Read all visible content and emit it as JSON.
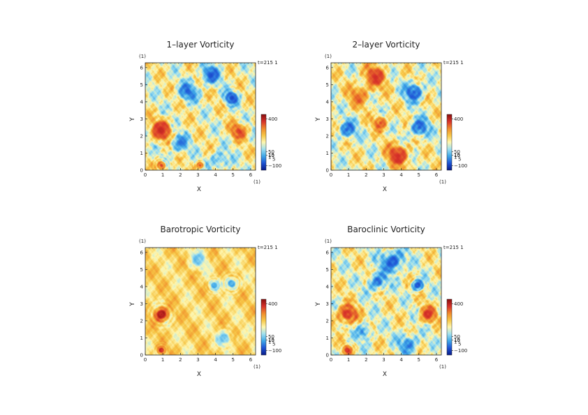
{
  "chart_data": [
    {
      "type": "heatmap",
      "title": "1–layer Vorticity",
      "xlabel": "X",
      "ylabel": "Y",
      "x_unit": "(1)",
      "y_unit": "(1)",
      "time_label": "t=215 1",
      "xlim": [
        0,
        6.28
      ],
      "ylim": [
        0,
        6.28
      ],
      "xticks": [
        "0",
        "1",
        "2",
        "3",
        "4",
        "5",
        "6"
      ],
      "yticks": [
        "0",
        "1",
        "2",
        "3",
        "4",
        "5",
        "6"
      ],
      "colorbar": {
        "range": [
          -150,
          450
        ],
        "ticks": [
          "400",
          "50",
          "10",
          "−100"
        ],
        "extra_labels": [
          "15",
          "1",
          "5"
        ]
      },
      "features": [
        {
          "x": 0.9,
          "y": 2.35,
          "strength": 1.0,
          "radius": 0.55
        },
        {
          "x": 0.9,
          "y": 0.3,
          "strength": 0.9,
          "radius": 0.25
        },
        {
          "x": 4.9,
          "y": 4.25,
          "strength": -1.0,
          "radius": 0.35
        },
        {
          "x": 3.7,
          "y": 5.6,
          "strength": -0.8,
          "radius": 0.5
        },
        {
          "x": 3.1,
          "y": 0.3,
          "strength": 0.8,
          "radius": 0.2
        },
        {
          "x": 5.3,
          "y": 2.3,
          "strength": 0.7,
          "radius": 0.45
        },
        {
          "x": 2.4,
          "y": 4.6,
          "strength": -0.7,
          "radius": 0.5
        },
        {
          "x": 1.9,
          "y": 1.6,
          "strength": -0.6,
          "radius": 0.5
        },
        {
          "x": 4.2,
          "y": 0.6,
          "strength": -0.5,
          "radius": 0.5
        }
      ]
    },
    {
      "type": "heatmap",
      "title": "2–layer Vorticity",
      "xlabel": "X",
      "ylabel": "Y",
      "x_unit": "(1)",
      "y_unit": "(1)",
      "time_label": "t=215 1",
      "xlim": [
        0,
        6.28
      ],
      "ylim": [
        0,
        6.28
      ],
      "xticks": [
        "0",
        "1",
        "2",
        "3",
        "4",
        "5",
        "6"
      ],
      "yticks": [
        "0",
        "1",
        "2",
        "3",
        "4",
        "5",
        "6"
      ],
      "colorbar": {
        "range": [
          -150,
          450
        ],
        "ticks": [
          "400",
          "50",
          "10",
          "−100"
        ],
        "extra_labels": [
          "15",
          "1",
          "5"
        ]
      },
      "features": [
        {
          "x": 4.7,
          "y": 4.6,
          "strength": -0.9,
          "radius": 0.5
        },
        {
          "x": 0.9,
          "y": 2.4,
          "strength": -0.7,
          "radius": 0.5
        },
        {
          "x": 3.8,
          "y": 0.9,
          "strength": 0.9,
          "radius": 0.6
        },
        {
          "x": 2.5,
          "y": 5.5,
          "strength": 0.8,
          "radius": 0.6
        },
        {
          "x": 5.0,
          "y": 2.5,
          "strength": -0.8,
          "radius": 0.5
        },
        {
          "x": 1.6,
          "y": 4.4,
          "strength": 0.5,
          "radius": 0.6
        },
        {
          "x": 2.8,
          "y": 2.8,
          "strength": 0.7,
          "radius": 0.4
        }
      ]
    },
    {
      "type": "heatmap",
      "title": "Barotropic Vorticity",
      "xlabel": "X",
      "ylabel": "Y",
      "x_unit": "(1)",
      "y_unit": "(1)",
      "time_label": "t=215 1",
      "xlim": [
        0,
        6.28
      ],
      "ylim": [
        0,
        6.28
      ],
      "xticks": [
        "0",
        "1",
        "2",
        "3",
        "4",
        "5",
        "6"
      ],
      "yticks": [
        "0",
        "1",
        "2",
        "3",
        "4",
        "5",
        "6"
      ],
      "colorbar": {
        "range": [
          -150,
          450
        ],
        "ticks": [
          "400",
          "50",
          "10",
          "−100"
        ],
        "extra_labels": [
          "15",
          "1",
          "5"
        ]
      },
      "features": [
        {
          "x": 0.9,
          "y": 2.4,
          "strength": 1.0,
          "radius": 0.35
        },
        {
          "x": 4.9,
          "y": 4.2,
          "strength": -0.9,
          "radius": 0.3
        },
        {
          "x": 3.9,
          "y": 4.1,
          "strength": -0.6,
          "radius": 0.25
        },
        {
          "x": 0.9,
          "y": 0.3,
          "strength": 0.7,
          "radius": 0.2
        },
        {
          "x": 4.5,
          "y": 1.0,
          "strength": -0.5,
          "radius": 0.4
        },
        {
          "x": 3.0,
          "y": 5.6,
          "strength": -0.4,
          "radius": 0.5
        }
      ]
    },
    {
      "type": "heatmap",
      "title": "Baroclinic Vorticity",
      "xlabel": "X",
      "ylabel": "Y",
      "x_unit": "(1)",
      "y_unit": "(1)",
      "time_label": "t=215 1",
      "xlim": [
        0,
        6.28
      ],
      "ylim": [
        0,
        6.28
      ],
      "xticks": [
        "0",
        "1",
        "2",
        "3",
        "4",
        "5",
        "6"
      ],
      "yticks": [
        "0",
        "1",
        "2",
        "3",
        "4",
        "5",
        "6"
      ],
      "colorbar": {
        "range": [
          -150,
          450
        ],
        "ticks": [
          "400",
          "50",
          "10",
          "−100"
        ],
        "extra_labels": [
          "15",
          "1",
          "5"
        ]
      },
      "features": [
        {
          "x": 0.9,
          "y": 2.4,
          "strength": 1.0,
          "radius": 0.5
        },
        {
          "x": 0.9,
          "y": 0.3,
          "strength": 0.8,
          "radius": 0.25
        },
        {
          "x": 4.9,
          "y": 4.1,
          "strength": -1.0,
          "radius": 0.3
        },
        {
          "x": 3.5,
          "y": 5.5,
          "strength": -0.9,
          "radius": 0.6
        },
        {
          "x": 5.5,
          "y": 2.4,
          "strength": 0.8,
          "radius": 0.45
        },
        {
          "x": 2.6,
          "y": 4.3,
          "strength": -0.7,
          "radius": 0.5
        },
        {
          "x": 4.4,
          "y": 0.7,
          "strength": -0.6,
          "radius": 0.55
        },
        {
          "x": 1.9,
          "y": 1.4,
          "strength": -0.5,
          "radius": 0.45
        }
      ]
    }
  ],
  "colors": {
    "colormap": [
      "#0a1e8c",
      "#1f55d6",
      "#3fa8e8",
      "#9fe0f0",
      "#fff7b0",
      "#f7c646",
      "#f08a2c",
      "#d8322a",
      "#8c1010"
    ],
    "axis": "#222222"
  }
}
